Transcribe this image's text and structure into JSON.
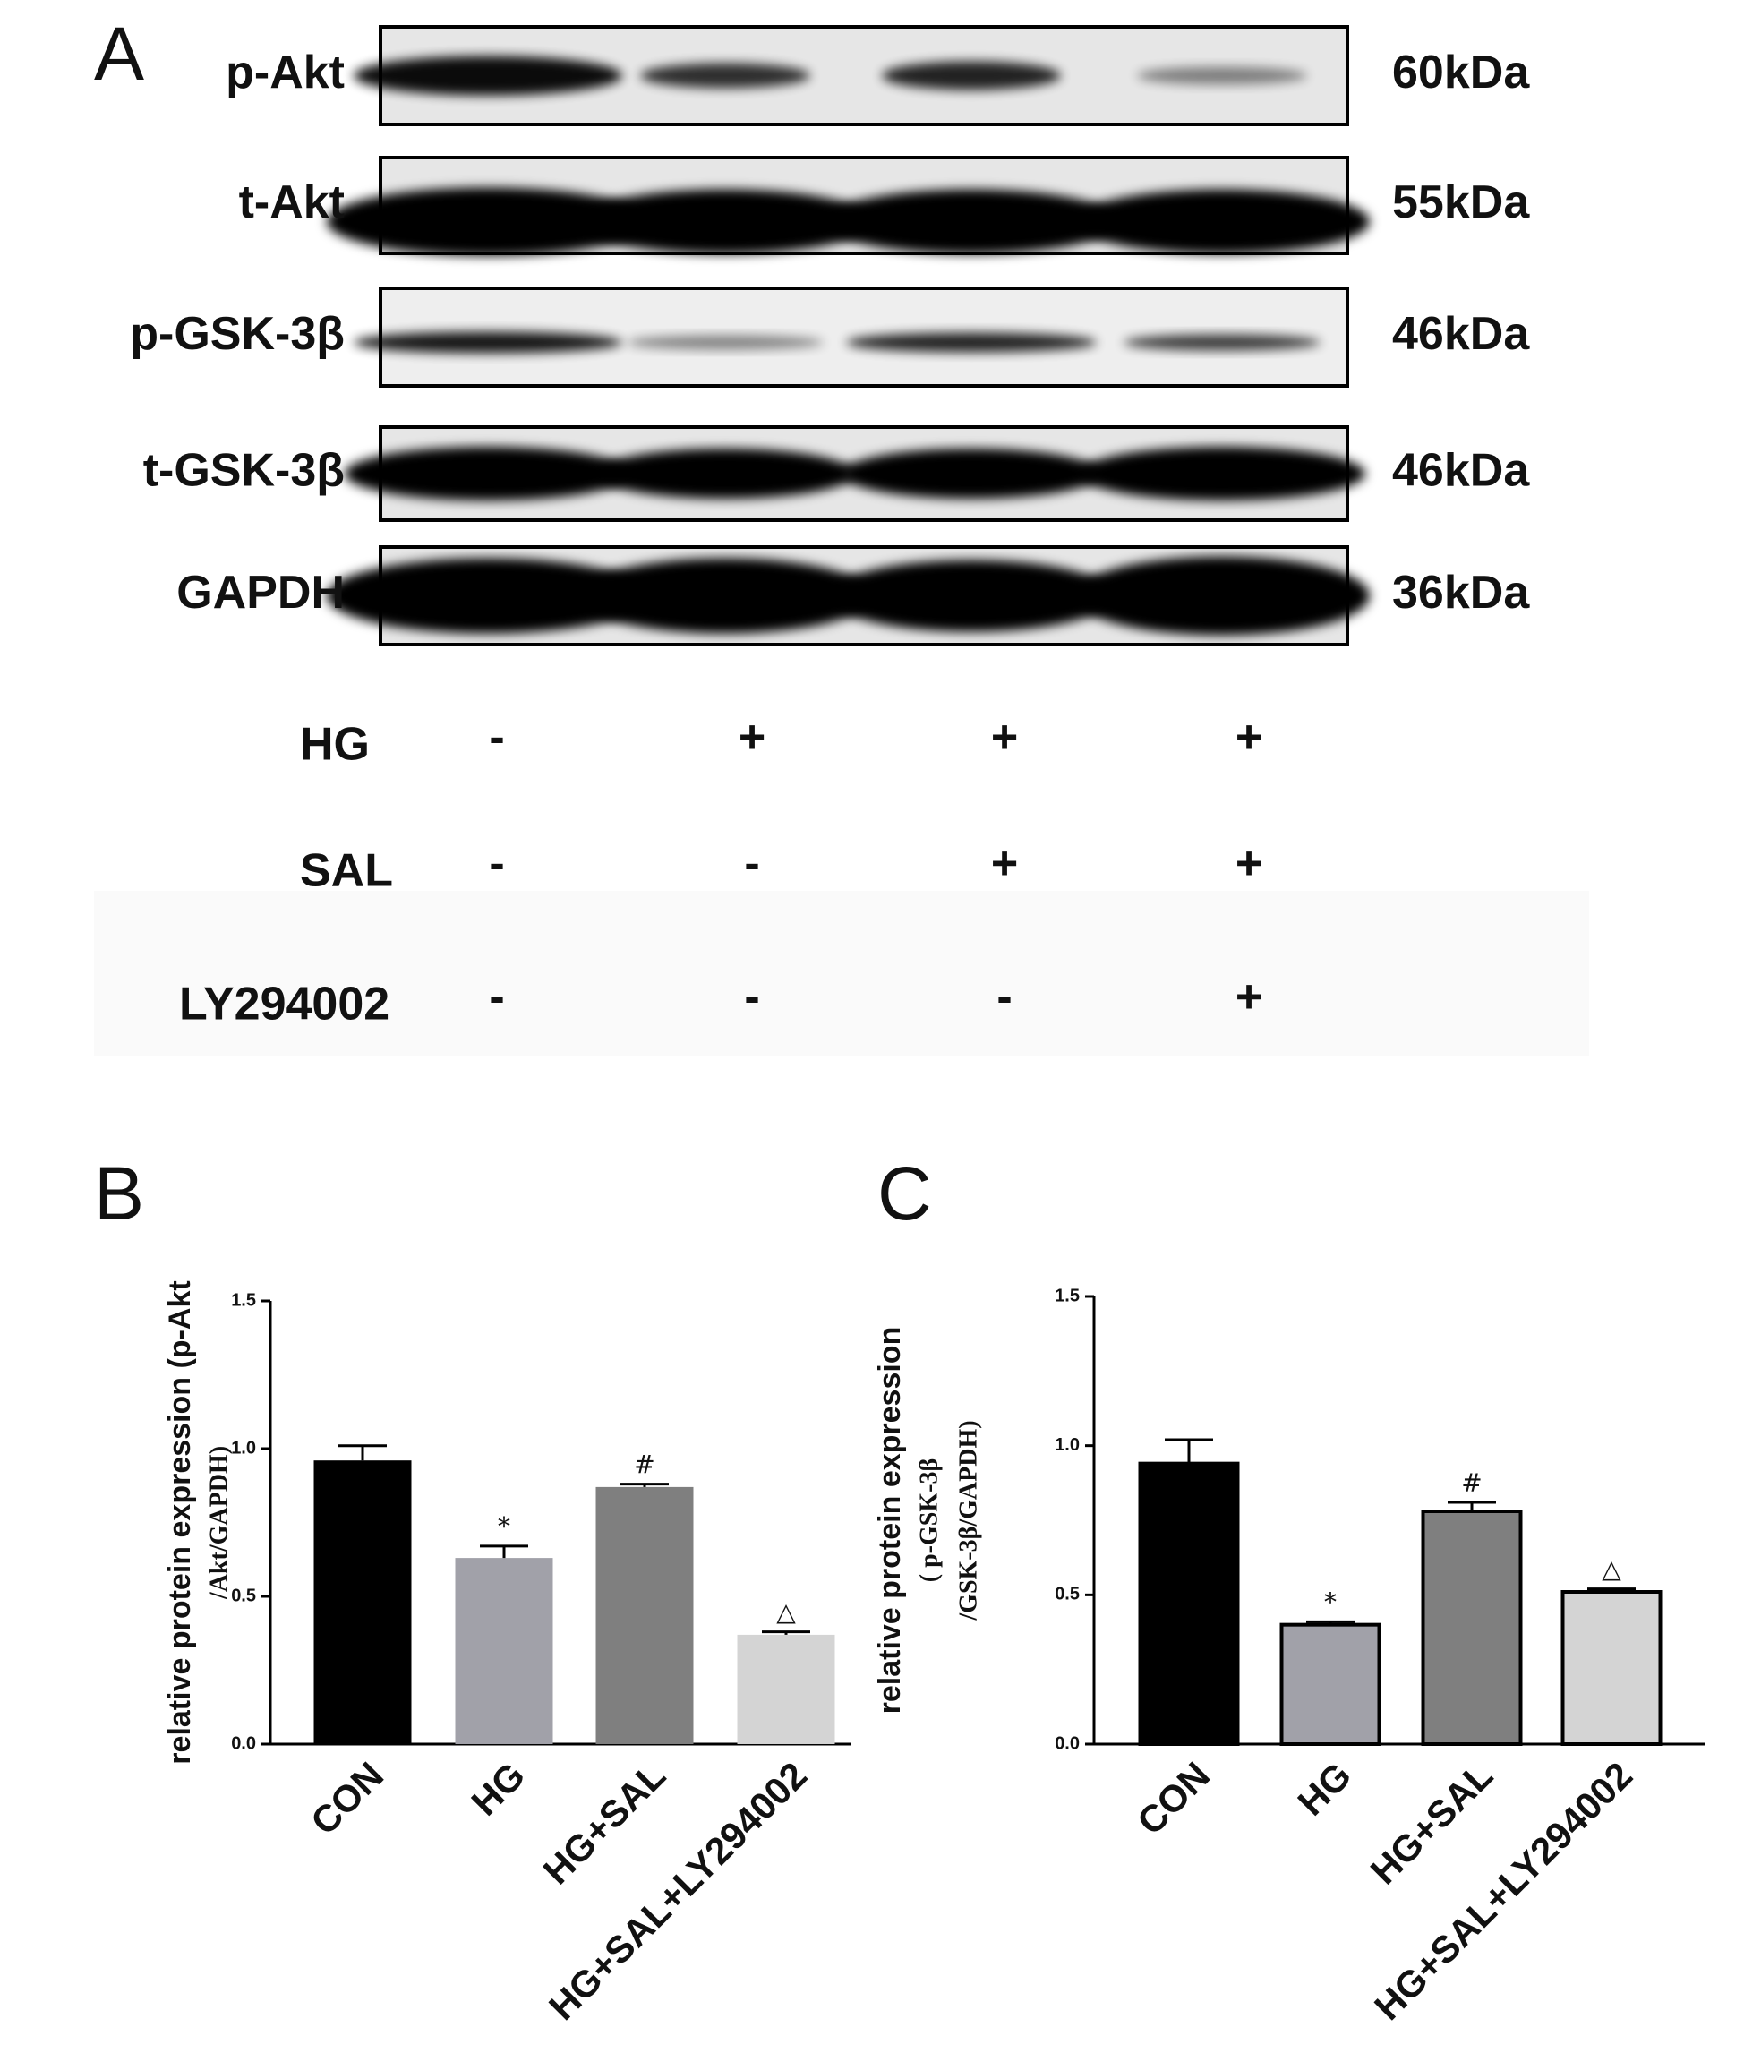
{
  "panels": [
    "A",
    "B",
    "C"
  ],
  "blot": {
    "rows": [
      {
        "label": "p-Akt",
        "mw": "60kDa"
      },
      {
        "label": "t-Akt",
        "mw": "55kDa"
      },
      {
        "label": "p-GSK-3β",
        "mw": "46kDa"
      },
      {
        "label": "t-GSK-3β",
        "mw": "46kDa"
      },
      {
        "label": "GAPDH",
        "mw": "36kDa"
      }
    ],
    "treatments": [
      {
        "label": "HG",
        "signs": [
          "-",
          "+",
          "+",
          "+"
        ]
      },
      {
        "label": "SAL",
        "signs": [
          "-",
          "-",
          "+",
          "+"
        ]
      },
      {
        "label": "LY294002",
        "signs": [
          "-",
          "-",
          "-",
          "+"
        ]
      }
    ]
  },
  "chart_data": [
    {
      "type": "bar",
      "ylabel": [
        "relative protein expression (p-Akt",
        "/Akt/GAPDH)"
      ],
      "categories": [
        "CON",
        "HG",
        "HG+SAL",
        "HG+SAL+LY294002"
      ],
      "values": [
        0.96,
        0.63,
        0.87,
        0.37
      ],
      "errors": [
        0.05,
        0.04,
        0.01,
        0.01
      ],
      "colors": [
        "#000000",
        "#a1a1a9",
        "#7f7f7f",
        "#d4d4d4"
      ],
      "bar_outline": false,
      "annotations": [
        {
          "category": "HG",
          "text": "*"
        },
        {
          "category": "HG+SAL",
          "text": "#"
        },
        {
          "category": "HG+SAL+LY294002",
          "text": "△"
        }
      ],
      "ylim": [
        0,
        1.5
      ],
      "yticks": [
        {
          "value": 0,
          "label": "0.0"
        },
        {
          "value": 0.5,
          "label": "0.5"
        },
        {
          "value": 1,
          "label": "1.0"
        },
        {
          "value": 1.5,
          "label": "1.5"
        }
      ],
      "grid": false
    },
    {
      "type": "bar",
      "ylabel": [
        "relative protein expression",
        "( p-GSK-3β",
        "/GSK-3β/GAPDH)"
      ],
      "categories": [
        "CON",
        "HG",
        "HG+SAL",
        "HG+SAL+LY294002"
      ],
      "values": [
        0.94,
        0.4,
        0.78,
        0.51
      ],
      "errors": [
        0.08,
        0.01,
        0.03,
        0.01
      ],
      "colors": [
        "#000000",
        "#a1a1a9",
        "#7f7f7f",
        "#d4d4d4"
      ],
      "bar_outline": true,
      "annotations": [
        {
          "category": "HG",
          "text": "*"
        },
        {
          "category": "HG+SAL",
          "text": "#"
        },
        {
          "category": "HG+SAL+LY294002",
          "text": "△"
        }
      ],
      "ylim": [
        0,
        1.5
      ],
      "yticks": [
        {
          "value": 0,
          "label": "0.0"
        },
        {
          "value": 0.5,
          "label": "0.5"
        },
        {
          "value": 1,
          "label": "1.0"
        },
        {
          "value": 1.5,
          "label": "1.5"
        }
      ],
      "grid": false
    }
  ]
}
